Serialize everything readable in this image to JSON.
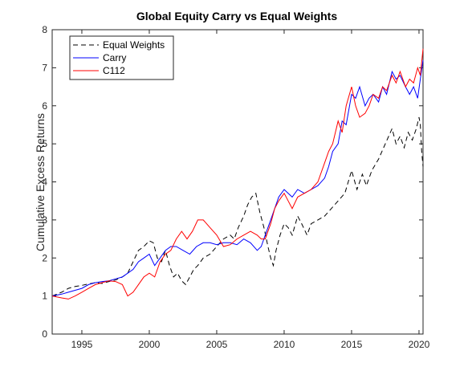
{
  "chart_data": {
    "type": "line",
    "title": "Global Equity Carry vs Equal Weights",
    "xlabel": "",
    "ylabel": "Cumulative Excess Returns",
    "xlim": [
      1992.8,
      2020.3
    ],
    "ylim": [
      0,
      8
    ],
    "xticks": [
      1995,
      2000,
      2005,
      2010,
      2015,
      2020
    ],
    "yticks": [
      0,
      1,
      2,
      3,
      4,
      5,
      6,
      7,
      8
    ],
    "grid": false,
    "legend_position": "top-left",
    "series": [
      {
        "name": "Equal Weights",
        "color": "#000000",
        "style": "dashed",
        "x": [
          1992.8,
          1993.5,
          1994.0,
          1994.5,
          1995.0,
          1995.5,
          1996.0,
          1996.5,
          1997.0,
          1997.5,
          1998.0,
          1998.4,
          1998.8,
          1999.2,
          1999.6,
          2000.0,
          2000.3,
          2000.6,
          2000.9,
          2001.2,
          2001.5,
          2001.8,
          2002.1,
          2002.4,
          2002.7,
          2003.0,
          2003.3,
          2003.6,
          2004.0,
          2004.5,
          2005.0,
          2005.5,
          2006.0,
          2006.3,
          2006.6,
          2007.0,
          2007.3,
          2007.6,
          2007.9,
          2008.2,
          2008.5,
          2008.8,
          2009.0,
          2009.2,
          2009.4,
          2009.7,
          2010.0,
          2010.3,
          2010.6,
          2011.0,
          2011.3,
          2011.7,
          2012.0,
          2012.5,
          2013.0,
          2013.5,
          2014.0,
          2014.5,
          2015.0,
          2015.4,
          2015.8,
          2016.1,
          2016.5,
          2017.0,
          2017.5,
          2018.0,
          2018.3,
          2018.6,
          2018.9,
          2019.2,
          2019.5,
          2019.8,
          2020.0,
          2020.1,
          2020.2,
          2020.3
        ],
        "values": [
          1.0,
          1.1,
          1.2,
          1.25,
          1.28,
          1.32,
          1.35,
          1.33,
          1.38,
          1.42,
          1.5,
          1.6,
          1.9,
          2.2,
          2.3,
          2.45,
          2.4,
          2.0,
          1.9,
          2.2,
          1.8,
          1.5,
          1.6,
          1.4,
          1.3,
          1.5,
          1.7,
          1.8,
          2.0,
          2.1,
          2.3,
          2.5,
          2.6,
          2.5,
          2.8,
          3.1,
          3.4,
          3.6,
          3.7,
          3.2,
          2.8,
          2.3,
          2.0,
          1.8,
          2.2,
          2.6,
          2.9,
          2.8,
          2.6,
          3.1,
          2.9,
          2.6,
          2.9,
          3.0,
          3.1,
          3.3,
          3.5,
          3.7,
          4.3,
          3.8,
          4.2,
          3.9,
          4.3,
          4.6,
          5.0,
          5.4,
          5.0,
          5.2,
          4.9,
          5.3,
          5.1,
          5.4,
          5.7,
          5.5,
          4.8,
          4.4
        ]
      },
      {
        "name": "Carry",
        "color": "#0000ff",
        "style": "solid",
        "x": [
          1992.8,
          1993.5,
          1994.0,
          1994.5,
          1995.0,
          1995.5,
          1996.0,
          1996.5,
          1997.0,
          1997.5,
          1998.0,
          1998.4,
          1998.8,
          1999.2,
          1999.6,
          2000.0,
          2000.4,
          2000.8,
          2001.2,
          2001.6,
          2002.0,
          2002.5,
          2003.0,
          2003.5,
          2004.0,
          2004.5,
          2005.0,
          2005.5,
          2006.0,
          2006.5,
          2007.0,
          2007.5,
          2008.0,
          2008.3,
          2008.6,
          2009.0,
          2009.3,
          2009.6,
          2010.0,
          2010.3,
          2010.6,
          2011.0,
          2011.5,
          2012.0,
          2012.5,
          2013.0,
          2013.3,
          2013.6,
          2014.0,
          2014.3,
          2014.6,
          2015.0,
          2015.3,
          2015.6,
          2016.0,
          2016.3,
          2016.6,
          2017.0,
          2017.3,
          2017.6,
          2018.0,
          2018.3,
          2018.6,
          2019.0,
          2019.3,
          2019.6,
          2019.9,
          2020.1,
          2020.3
        ],
        "values": [
          1.0,
          1.05,
          1.1,
          1.15,
          1.2,
          1.3,
          1.35,
          1.38,
          1.4,
          1.45,
          1.5,
          1.6,
          1.7,
          1.9,
          2.0,
          2.1,
          1.8,
          2.0,
          2.2,
          2.3,
          2.3,
          2.2,
          2.1,
          2.3,
          2.4,
          2.4,
          2.35,
          2.4,
          2.4,
          2.35,
          2.5,
          2.4,
          2.2,
          2.3,
          2.6,
          3.0,
          3.3,
          3.6,
          3.8,
          3.7,
          3.6,
          3.8,
          3.7,
          3.8,
          3.9,
          4.1,
          4.4,
          4.8,
          5.0,
          5.6,
          5.5,
          6.3,
          6.2,
          6.5,
          6.0,
          6.2,
          6.3,
          6.1,
          6.5,
          6.3,
          6.9,
          6.7,
          6.8,
          6.5,
          6.3,
          6.5,
          6.2,
          6.7,
          7.2
        ]
      },
      {
        "name": "C112",
        "color": "#ff0000",
        "style": "solid",
        "x": [
          1992.8,
          1993.5,
          1994.0,
          1994.5,
          1995.0,
          1995.5,
          1996.0,
          1996.5,
          1997.0,
          1997.5,
          1998.0,
          1998.4,
          1998.8,
          1999.2,
          1999.6,
          2000.0,
          2000.4,
          2000.8,
          2001.2,
          2001.6,
          2002.0,
          2002.4,
          2002.8,
          2003.2,
          2003.6,
          2004.0,
          2004.5,
          2005.0,
          2005.5,
          2006.0,
          2006.5,
          2007.0,
          2007.5,
          2008.0,
          2008.3,
          2008.6,
          2009.0,
          2009.3,
          2009.6,
          2010.0,
          2010.3,
          2010.6,
          2011.0,
          2011.5,
          2012.0,
          2012.5,
          2013.0,
          2013.3,
          2013.6,
          2014.0,
          2014.3,
          2014.6,
          2015.0,
          2015.3,
          2015.6,
          2016.0,
          2016.3,
          2016.6,
          2017.0,
          2017.3,
          2017.6,
          2018.0,
          2018.3,
          2018.6,
          2019.0,
          2019.3,
          2019.6,
          2019.9,
          2020.1,
          2020.3
        ],
        "values": [
          1.0,
          0.95,
          0.92,
          1.0,
          1.1,
          1.2,
          1.3,
          1.35,
          1.4,
          1.38,
          1.3,
          1.0,
          1.1,
          1.3,
          1.5,
          1.6,
          1.5,
          1.9,
          2.1,
          2.2,
          2.5,
          2.7,
          2.5,
          2.7,
          3.0,
          3.0,
          2.8,
          2.6,
          2.3,
          2.35,
          2.5,
          2.6,
          2.7,
          2.6,
          2.5,
          2.5,
          2.9,
          3.3,
          3.5,
          3.7,
          3.5,
          3.3,
          3.6,
          3.7,
          3.8,
          4.0,
          4.5,
          4.8,
          5.0,
          5.6,
          5.3,
          6.0,
          6.5,
          6.0,
          5.7,
          5.8,
          6.0,
          6.3,
          6.2,
          6.5,
          6.4,
          6.8,
          6.6,
          6.9,
          6.5,
          6.7,
          6.6,
          7.0,
          6.8,
          7.5
        ]
      }
    ]
  }
}
